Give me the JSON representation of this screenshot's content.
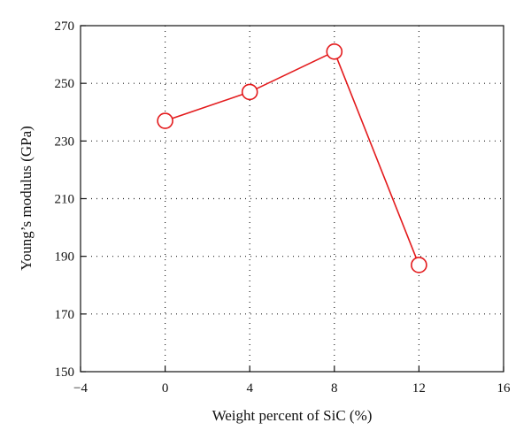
{
  "chart_data": {
    "type": "line",
    "title": "",
    "xlabel": "Weight percent of SiC (%)",
    "ylabel": "Young’s modulus (GPa)",
    "xlim": [
      -4,
      16
    ],
    "ylim": [
      150,
      270
    ],
    "xticks": [
      -4,
      0,
      4,
      8,
      12,
      16
    ],
    "yticks": [
      150,
      170,
      190,
      210,
      230,
      250,
      270
    ],
    "xtick_labels": [
      "−4",
      "0",
      "4",
      "8",
      "12",
      "16"
    ],
    "ytick_labels": [
      "150",
      "170",
      "190",
      "210",
      "230",
      "250",
      "270"
    ],
    "grid": true,
    "legend": "none",
    "series": [
      {
        "x": [
          0,
          4,
          8,
          12
        ],
        "y": [
          237,
          247,
          261,
          187
        ],
        "color": "#e31a1c",
        "marker": "open-circle"
      }
    ]
  }
}
